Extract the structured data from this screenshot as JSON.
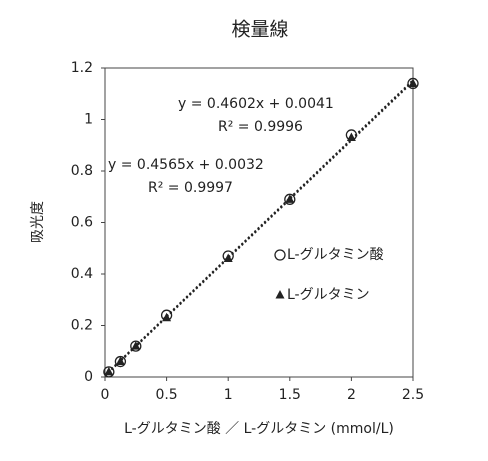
{
  "chart_data": {
    "type": "scatter",
    "title": "検量線",
    "x_label": "L-グルタミン酸 ／ L-グルタミン (mmol/L)",
    "y_label": "吸光度",
    "xlim": [
      0,
      2.5
    ],
    "xticks": [
      0,
      0.5,
      1,
      1.5,
      2,
      2.5
    ],
    "ylim": [
      0,
      1.2
    ],
    "yticks": [
      0,
      0.2,
      0.4,
      0.6,
      0.8,
      1,
      1.2
    ],
    "grid": false,
    "legend": "right",
    "series": [
      {
        "name": "L-グルタミン酸",
        "marker": "circle",
        "color": "#222222",
        "x": [
          0.03125,
          0.125,
          0.25,
          0.5,
          1,
          1.5,
          2,
          2.5
        ],
        "values": [
          0.02,
          0.06,
          0.12,
          0.24,
          0.47,
          0.69,
          0.94,
          1.14
        ]
      },
      {
        "name": "L-グルタミン",
        "marker": "triangle",
        "color": "#222222",
        "x": [
          0.03125,
          0.125,
          0.25,
          0.5,
          1,
          1.5,
          2,
          2.5
        ],
        "values": [
          0.02,
          0.06,
          0.12,
          0.23,
          0.46,
          0.69,
          0.93,
          1.14
        ]
      }
    ],
    "annotations": [
      "y = 0.4602x + 0.0041",
      "R² = 0.9996",
      "y = 0.4565x + 0.0032",
      "R² = 0.9997"
    ]
  }
}
